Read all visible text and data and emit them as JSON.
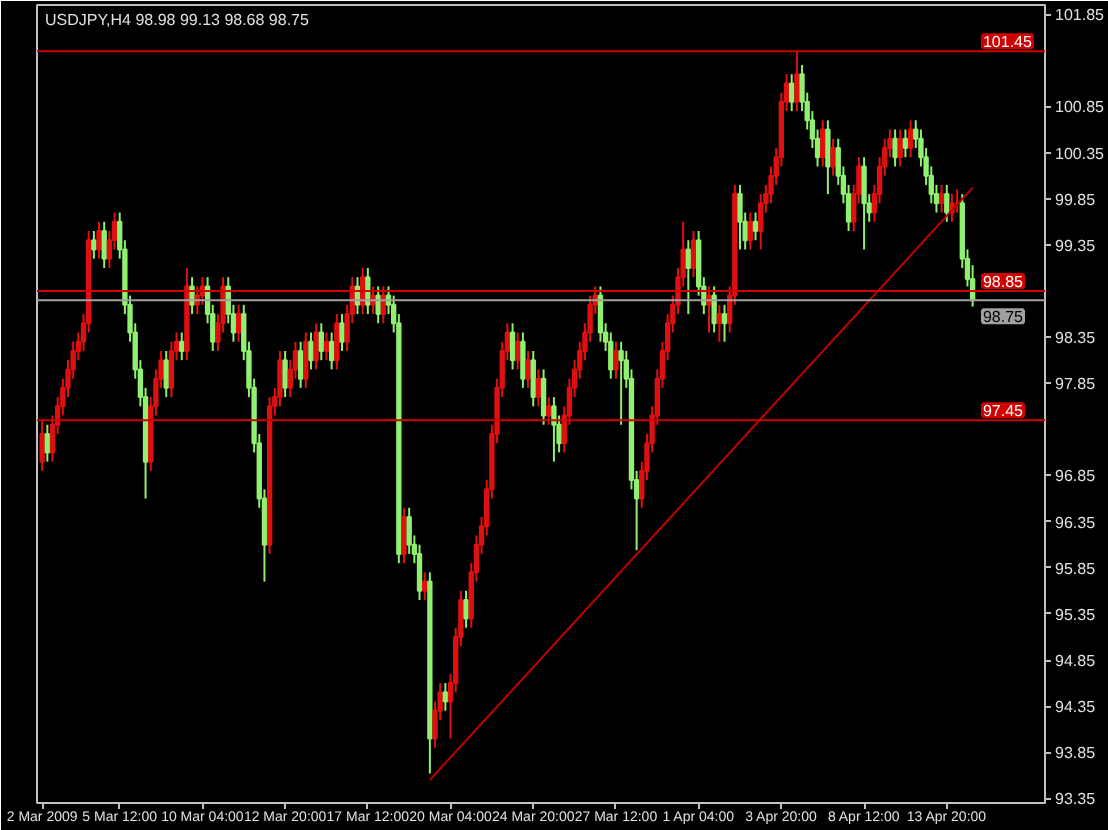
{
  "chart_data": {
    "type": "candlestick",
    "title": "USDJPY,H4 98.98 99.13 98.68 98.75",
    "ylim": [
      93.3,
      101.95
    ],
    "categories": [
      "2 Mar 2009",
      null,
      null,
      null,
      null,
      null,
      null,
      null,
      null,
      null,
      null,
      null,
      null,
      null,
      null,
      "5 Mar 12:00",
      null,
      null,
      null,
      null,
      null,
      null,
      null,
      null,
      null,
      null,
      null,
      null,
      null,
      null,
      null,
      "10 Mar 04:00",
      null,
      null,
      null,
      null,
      null,
      null,
      null,
      null,
      null,
      null,
      null,
      null,
      null,
      null,
      null,
      "12 Mar 20:00",
      null,
      null,
      null,
      null,
      null,
      null,
      null,
      null,
      null,
      null,
      null,
      null,
      null,
      null,
      null,
      "17 Mar 12:00",
      null,
      null,
      null,
      null,
      null,
      null,
      null,
      null,
      null,
      null,
      null,
      null,
      null,
      null,
      null,
      "20 Mar 04:00",
      null,
      null,
      null,
      null,
      null,
      null,
      null,
      null,
      null,
      null,
      null,
      null,
      null,
      null,
      null,
      "24 Mar 20:00",
      null,
      null,
      null,
      null,
      null,
      null,
      null,
      null,
      null,
      null,
      null,
      null,
      null,
      null,
      null,
      "27 Mar 12:00",
      null,
      null,
      null,
      null,
      null,
      null,
      null,
      null,
      null,
      null,
      null,
      null,
      null,
      null,
      null,
      "1 Apr 04:00",
      null,
      null,
      null,
      null,
      null,
      null,
      null,
      null,
      null,
      null,
      null,
      null,
      null,
      null,
      null,
      "3 Apr 20:00",
      null,
      null,
      null,
      null,
      null,
      null,
      null,
      null,
      null,
      null,
      null,
      null,
      null,
      null,
      null,
      "8 Apr 12:00",
      null,
      null,
      null,
      null,
      null,
      null,
      null,
      null,
      null,
      null,
      null,
      null,
      null,
      null,
      null,
      "13 Apr 20:00",
      null,
      null,
      null,
      null,
      null
    ],
    "yticks": [
      93.35,
      93.85,
      94.35,
      94.85,
      95.35,
      95.85,
      96.35,
      96.85,
      97.85,
      98.35,
      99.35,
      99.85,
      100.35,
      100.85,
      101.85
    ],
    "grid": false,
    "ref_lines": [
      {
        "axis": "y",
        "value": 101.45,
        "label": "101.45",
        "color": "#d00000"
      },
      {
        "axis": "y",
        "value": 98.85,
        "label": "98.85",
        "color": "#d00000"
      },
      {
        "axis": "y",
        "value": 98.75,
        "label": "98.75",
        "color": "#a0a0a0"
      },
      {
        "axis": "y",
        "value": 97.45,
        "label": "97.45",
        "color": "#d00000"
      }
    ],
    "series": [
      {
        "type": "candlestick",
        "ohlc": [
          [
            97.0,
            97.45,
            96.9,
            97.3
          ],
          [
            97.3,
            97.4,
            97.0,
            97.1
          ],
          [
            97.1,
            97.5,
            97.0,
            97.4
          ],
          [
            97.4,
            97.7,
            97.3,
            97.6
          ],
          [
            97.6,
            97.9,
            97.5,
            97.8
          ],
          [
            97.8,
            98.1,
            97.7,
            98.0
          ],
          [
            98.0,
            98.3,
            97.9,
            98.2
          ],
          [
            98.2,
            98.4,
            98.1,
            98.3
          ],
          [
            98.3,
            98.6,
            98.2,
            98.5
          ],
          [
            98.5,
            99.5,
            98.4,
            99.4
          ],
          [
            99.4,
            99.5,
            99.2,
            99.3
          ],
          [
            99.3,
            99.6,
            99.2,
            99.5
          ],
          [
            99.5,
            99.6,
            99.1,
            99.2
          ],
          [
            99.2,
            99.5,
            99.1,
            99.4
          ],
          [
            99.4,
            99.7,
            99.3,
            99.6
          ],
          [
            99.6,
            99.7,
            99.2,
            99.3
          ],
          [
            99.3,
            99.4,
            98.6,
            98.7
          ],
          [
            98.7,
            98.8,
            98.3,
            98.4
          ],
          [
            98.4,
            98.5,
            97.9,
            98.0
          ],
          [
            98.0,
            98.1,
            97.6,
            97.7
          ],
          [
            97.7,
            97.8,
            96.6,
            97.0
          ],
          [
            97.0,
            97.7,
            96.9,
            97.6
          ],
          [
            97.6,
            98.0,
            97.5,
            97.9
          ],
          [
            97.9,
            98.2,
            97.8,
            98.1
          ],
          [
            98.1,
            98.2,
            97.7,
            97.8
          ],
          [
            97.8,
            98.3,
            97.7,
            98.2
          ],
          [
            98.2,
            98.4,
            98.1,
            98.3
          ],
          [
            98.3,
            98.4,
            98.1,
            98.2
          ],
          [
            98.2,
            99.1,
            98.1,
            98.9
          ],
          [
            98.9,
            99.0,
            98.6,
            98.7
          ],
          [
            98.7,
            98.9,
            98.6,
            98.8
          ],
          [
            98.8,
            99.0,
            98.7,
            98.9
          ],
          [
            98.9,
            99.0,
            98.5,
            98.6
          ],
          [
            98.6,
            98.7,
            98.2,
            98.3
          ],
          [
            98.3,
            98.6,
            98.2,
            98.5
          ],
          [
            98.5,
            99.0,
            98.4,
            98.9
          ],
          [
            98.9,
            99.0,
            98.5,
            98.6
          ],
          [
            98.6,
            98.7,
            98.3,
            98.4
          ],
          [
            98.4,
            98.7,
            98.3,
            98.6
          ],
          [
            98.6,
            98.7,
            98.1,
            98.2
          ],
          [
            98.2,
            98.3,
            97.7,
            97.8
          ],
          [
            97.8,
            97.9,
            97.1,
            97.2
          ],
          [
            97.2,
            97.3,
            96.5,
            96.6
          ],
          [
            96.6,
            96.7,
            95.7,
            96.1
          ],
          [
            96.1,
            97.7,
            96.0,
            97.6
          ],
          [
            97.6,
            97.8,
            97.5,
            97.7
          ],
          [
            97.7,
            98.2,
            97.6,
            98.1
          ],
          [
            98.1,
            98.2,
            97.7,
            97.8
          ],
          [
            97.8,
            98.1,
            97.7,
            98.0
          ],
          [
            98.0,
            98.3,
            97.9,
            98.2
          ],
          [
            98.2,
            98.3,
            97.8,
            97.9
          ],
          [
            97.9,
            98.4,
            97.8,
            98.3
          ],
          [
            98.3,
            98.4,
            98.0,
            98.1
          ],
          [
            98.1,
            98.5,
            98.0,
            98.4
          ],
          [
            98.4,
            98.5,
            98.1,
            98.2
          ],
          [
            98.2,
            98.4,
            98.1,
            98.3
          ],
          [
            98.3,
            98.4,
            98.0,
            98.1
          ],
          [
            98.1,
            98.6,
            98.0,
            98.5
          ],
          [
            98.5,
            98.6,
            98.2,
            98.3
          ],
          [
            98.3,
            98.7,
            98.2,
            98.6
          ],
          [
            98.6,
            99.0,
            98.5,
            98.9
          ],
          [
            98.9,
            99.0,
            98.6,
            98.7
          ],
          [
            98.7,
            99.1,
            98.6,
            99.0
          ],
          [
            99.0,
            99.1,
            98.6,
            98.7
          ],
          [
            98.7,
            98.9,
            98.6,
            98.8
          ],
          [
            98.8,
            98.9,
            98.5,
            98.6
          ],
          [
            98.6,
            98.9,
            98.5,
            98.8
          ],
          [
            98.8,
            98.9,
            98.6,
            98.7
          ],
          [
            98.7,
            98.8,
            98.4,
            98.5
          ],
          [
            98.5,
            98.6,
            95.9,
            96.0
          ],
          [
            96.0,
            96.5,
            95.9,
            96.4
          ],
          [
            96.4,
            96.5,
            96.0,
            96.1
          ],
          [
            96.1,
            96.2,
            95.9,
            96.0
          ],
          [
            96.0,
            96.1,
            95.5,
            95.6
          ],
          [
            95.6,
            95.8,
            95.5,
            95.7
          ],
          [
            95.7,
            95.8,
            93.62,
            94.0
          ],
          [
            94.0,
            94.4,
            93.9,
            94.3
          ],
          [
            94.3,
            94.6,
            94.2,
            94.5
          ],
          [
            94.5,
            94.6,
            94.3,
            94.4
          ],
          [
            94.4,
            94.7,
            94.0,
            94.6
          ],
          [
            94.6,
            95.2,
            94.5,
            95.1
          ],
          [
            95.1,
            95.6,
            95.0,
            95.5
          ],
          [
            95.5,
            95.6,
            95.2,
            95.3
          ],
          [
            95.3,
            95.9,
            95.2,
            95.8
          ],
          [
            95.8,
            96.2,
            95.7,
            96.1
          ],
          [
            96.1,
            96.4,
            96.0,
            96.3
          ],
          [
            96.3,
            96.8,
            96.2,
            96.7
          ],
          [
            96.7,
            97.4,
            96.6,
            97.3
          ],
          [
            97.3,
            97.9,
            97.2,
            97.8
          ],
          [
            97.8,
            98.3,
            97.7,
            98.2
          ],
          [
            98.2,
            98.5,
            98.1,
            98.4
          ],
          [
            98.4,
            98.5,
            98.0,
            98.1
          ],
          [
            98.1,
            98.4,
            98.0,
            98.3
          ],
          [
            98.3,
            98.4,
            97.8,
            97.9
          ],
          [
            97.9,
            98.2,
            97.8,
            98.1
          ],
          [
            98.1,
            98.2,
            97.6,
            97.7
          ],
          [
            97.7,
            98.0,
            97.6,
            97.9
          ],
          [
            97.9,
            98.0,
            97.4,
            97.5
          ],
          [
            97.5,
            97.7,
            97.4,
            97.6
          ],
          [
            97.6,
            97.7,
            97.0,
            97.4
          ],
          [
            97.4,
            97.5,
            97.1,
            97.2
          ],
          [
            97.2,
            97.6,
            97.1,
            97.5
          ],
          [
            97.5,
            97.9,
            97.4,
            97.8
          ],
          [
            97.8,
            98.1,
            97.7,
            98.0
          ],
          [
            98.0,
            98.3,
            97.9,
            98.2
          ],
          [
            98.2,
            98.5,
            98.1,
            98.4
          ],
          [
            98.4,
            98.8,
            98.3,
            98.7
          ],
          [
            98.7,
            98.9,
            98.6,
            98.8
          ],
          [
            98.8,
            98.9,
            98.3,
            98.4
          ],
          [
            98.4,
            98.5,
            98.2,
            98.3
          ],
          [
            98.3,
            98.4,
            97.9,
            98.0
          ],
          [
            98.0,
            98.3,
            97.9,
            98.2
          ],
          [
            98.2,
            98.3,
            97.4,
            98.1
          ],
          [
            98.1,
            98.2,
            97.8,
            97.9
          ],
          [
            97.9,
            98.0,
            96.7,
            96.8
          ],
          [
            96.8,
            96.9,
            96.04,
            96.6
          ],
          [
            96.6,
            97.0,
            96.5,
            96.9
          ],
          [
            96.9,
            97.3,
            96.8,
            97.2
          ],
          [
            97.2,
            97.6,
            97.1,
            97.5
          ],
          [
            97.5,
            98.0,
            97.4,
            97.9
          ],
          [
            97.9,
            98.3,
            97.8,
            98.2
          ],
          [
            98.2,
            98.6,
            98.1,
            98.5
          ],
          [
            98.5,
            98.8,
            98.4,
            98.7
          ],
          [
            98.7,
            99.1,
            98.6,
            99.0
          ],
          [
            99.0,
            99.6,
            98.9,
            99.3
          ],
          [
            99.3,
            99.4,
            98.6,
            99.1
          ],
          [
            99.1,
            99.5,
            99.0,
            99.4
          ],
          [
            99.4,
            99.5,
            98.8,
            98.9
          ],
          [
            98.9,
            99.0,
            98.6,
            98.7
          ],
          [
            98.7,
            98.9,
            98.4,
            98.8
          ],
          [
            98.8,
            98.9,
            98.4,
            98.5
          ],
          [
            98.5,
            98.7,
            98.3,
            98.6
          ],
          [
            98.6,
            98.7,
            98.3,
            98.5
          ],
          [
            98.5,
            98.9,
            98.4,
            98.8
          ],
          [
            98.8,
            100.0,
            98.7,
            99.9
          ],
          [
            99.9,
            100.0,
            99.3,
            99.6
          ],
          [
            99.6,
            99.7,
            99.3,
            99.4
          ],
          [
            99.4,
            99.7,
            99.3,
            99.6
          ],
          [
            99.6,
            99.7,
            99.4,
            99.5
          ],
          [
            99.5,
            99.9,
            99.3,
            99.8
          ],
          [
            99.8,
            100.0,
            99.7,
            99.9
          ],
          [
            99.9,
            100.2,
            99.8,
            100.1
          ],
          [
            100.1,
            100.4,
            100.0,
            100.3
          ],
          [
            100.3,
            101.0,
            100.2,
            100.9
          ],
          [
            100.9,
            101.2,
            100.8,
            101.1
          ],
          [
            101.1,
            101.2,
            100.8,
            100.9
          ],
          [
            100.9,
            101.45,
            100.8,
            101.2
          ],
          [
            101.2,
            101.3,
            100.8,
            100.9
          ],
          [
            100.9,
            101.0,
            100.6,
            100.7
          ],
          [
            100.7,
            100.8,
            100.4,
            100.5
          ],
          [
            100.5,
            100.6,
            100.2,
            100.3
          ],
          [
            100.3,
            100.7,
            100.2,
            100.6
          ],
          [
            100.6,
            100.7,
            99.9,
            100.2
          ],
          [
            100.2,
            100.5,
            100.1,
            100.4
          ],
          [
            100.4,
            100.5,
            100.0,
            100.1
          ],
          [
            100.1,
            100.2,
            99.8,
            99.9
          ],
          [
            99.9,
            100.0,
            99.5,
            99.6
          ],
          [
            99.6,
            100.0,
            99.5,
            99.9
          ],
          [
            99.9,
            100.3,
            99.8,
            100.2
          ],
          [
            100.2,
            100.3,
            99.3,
            99.8
          ],
          [
            99.8,
            99.9,
            99.6,
            99.7
          ],
          [
            99.7,
            100.0,
            99.6,
            99.9
          ],
          [
            99.9,
            100.3,
            99.8,
            100.2
          ],
          [
            100.2,
            100.5,
            100.1,
            100.4
          ],
          [
            100.4,
            100.6,
            100.3,
            100.5
          ],
          [
            100.5,
            100.6,
            100.2,
            100.3
          ],
          [
            100.3,
            100.6,
            100.2,
            100.5
          ],
          [
            100.5,
            100.6,
            100.3,
            100.4
          ],
          [
            100.4,
            100.7,
            100.3,
            100.6
          ],
          [
            100.6,
            100.7,
            100.4,
            100.5
          ],
          [
            100.5,
            100.6,
            100.2,
            100.3
          ],
          [
            100.3,
            100.4,
            100.0,
            100.1
          ],
          [
            100.1,
            100.2,
            99.8,
            99.9
          ],
          [
            99.9,
            100.0,
            99.7,
            99.8
          ],
          [
            99.8,
            100.0,
            99.7,
            99.9
          ],
          [
            99.9,
            100.0,
            99.6,
            99.7
          ],
          [
            99.7,
            99.9,
            99.6,
            99.8
          ],
          [
            99.8,
            99.95,
            99.7,
            99.8
          ],
          [
            99.8,
            99.9,
            99.1,
            99.2
          ],
          [
            99.2,
            99.3,
            98.9,
            98.98
          ],
          [
            98.98,
            99.13,
            98.68,
            98.75
          ]
        ]
      },
      {
        "type": "line",
        "values": [
          null,
          null,
          null,
          null,
          null,
          null,
          null,
          null,
          null,
          null,
          null,
          null,
          null,
          null,
          null,
          null,
          null,
          null,
          null,
          null,
          null,
          null,
          null,
          null,
          null,
          null,
          null,
          null,
          null,
          null,
          null,
          null,
          null,
          null,
          null,
          null,
          null,
          null,
          null,
          null,
          null,
          null,
          null,
          null,
          null,
          null,
          null,
          null,
          null,
          null,
          null,
          null,
          null,
          null,
          null,
          null,
          null,
          null,
          null,
          null,
          null,
          null,
          null,
          null,
          null,
          null,
          null,
          null,
          null,
          null,
          null,
          null,
          null,
          null,
          null,
          93.55,
          null,
          null,
          null,
          null,
          null,
          null,
          null,
          null,
          null,
          null,
          null,
          null,
          null,
          null,
          null,
          null,
          null,
          null,
          null,
          null,
          null,
          null,
          null,
          null,
          null,
          null,
          null,
          null,
          null,
          null,
          null,
          null,
          null,
          null,
          null,
          null,
          null,
          null,
          null,
          null,
          null,
          null,
          null,
          null,
          null,
          null,
          null,
          null,
          null,
          null,
          null,
          null,
          null,
          null,
          null,
          null,
          null,
          null,
          null,
          null,
          null,
          null,
          null,
          null,
          null,
          null,
          null,
          null,
          null,
          null,
          null,
          null,
          null,
          null,
          null,
          null,
          null,
          null,
          null,
          null,
          null,
          null,
          null,
          null,
          null,
          null,
          null,
          null,
          null,
          null,
          null,
          null,
          null,
          null,
          null,
          null,
          null,
          null,
          null,
          null,
          null,
          null,
          null,
          null,
          99.97
        ],
        "color": "#c00000"
      }
    ]
  }
}
